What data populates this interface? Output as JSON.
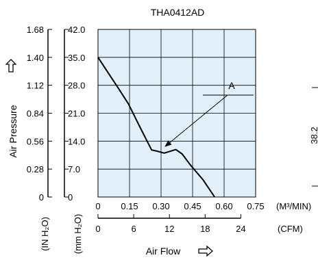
{
  "chart_data": {
    "type": "line",
    "title": "THA0412AD",
    "xlabel": "Air Flow",
    "ylabel": "Air Pressure",
    "x_unit_primary": "(M³/MIN)",
    "x_unit_secondary": "(CFM)",
    "y_unit_primary": "(mm H₂O)",
    "y_unit_secondary": "(IN H₂O)",
    "xlim": [
      0,
      0.75
    ],
    "ylim": [
      0,
      42.0
    ],
    "x_ticks_primary": [
      "0",
      "0.15",
      "0.30",
      "0.45",
      "0.60",
      "0.75"
    ],
    "x_ticks_secondary": [
      "0",
      "6",
      "12",
      "18",
      "24"
    ],
    "y_ticks_primary": [
      "0",
      "7.0",
      "14.0",
      "21.0",
      "28.0",
      "35.0",
      "42.0"
    ],
    "y_ticks_secondary": [
      "0",
      "0.28",
      "0.56",
      "0.84",
      "1.12",
      "1.40",
      "1.68"
    ],
    "grid": true,
    "background": "#e1f0fb",
    "series": [
      {
        "annotation": "A",
        "points": [
          {
            "x": 0.0,
            "y": 35.0
          },
          {
            "x": 0.05,
            "y": 31.0
          },
          {
            "x": 0.1,
            "y": 27.0
          },
          {
            "x": 0.145,
            "y": 23.3
          },
          {
            "x": 0.2,
            "y": 17.5
          },
          {
            "x": 0.255,
            "y": 11.8
          },
          {
            "x": 0.28,
            "y": 11.5
          },
          {
            "x": 0.315,
            "y": 11.0
          },
          {
            "x": 0.37,
            "y": 11.9
          },
          {
            "x": 0.4,
            "y": 10.8
          },
          {
            "x": 0.44,
            "y": 8.0
          },
          {
            "x": 0.5,
            "y": 4.3
          },
          {
            "x": 0.555,
            "y": 0.0
          }
        ]
      }
    ],
    "annotation_label": "A",
    "annotation_target": {
      "x": 0.3,
      "y": 12.0
    },
    "side_text": "38.2"
  },
  "icons": {
    "y_arrow": "up-outline-arrow-icon",
    "x_arrow": "right-outline-arrow-icon"
  }
}
